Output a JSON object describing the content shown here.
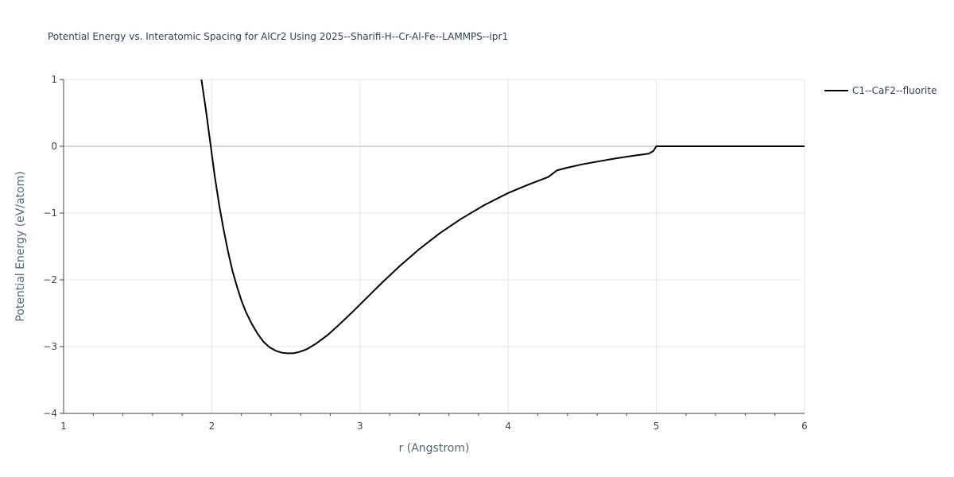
{
  "chart_data": {
    "type": "line",
    "title": "Potential Energy vs. Interatomic Spacing for AlCr2 Using 2025--Sharifi-H--Cr-Al-Fe--LAMMPS--ipr1",
    "xlabel": "r (Angstrom)",
    "ylabel": "Potential Energy (eV/atom)",
    "xlim": [
      1,
      6
    ],
    "ylim": [
      -4,
      1
    ],
    "xticks": [
      1,
      2,
      3,
      4,
      5,
      6
    ],
    "xtick_labels": [
      "1",
      "2",
      "3",
      "4",
      "5",
      "6"
    ],
    "yticks": [
      -4,
      -3,
      -2,
      -1,
      0,
      1
    ],
    "ytick_labels": [
      "−4",
      "−3",
      "−2",
      "−1",
      "0",
      "1"
    ],
    "grid": true,
    "legend_position": "top-right",
    "series": [
      {
        "name": "C1--CaF2--fluorite",
        "color": "#000000",
        "x": [
          1.93,
          1.96,
          1.99,
          2.02,
          2.05,
          2.08,
          2.11,
          2.14,
          2.17,
          2.2,
          2.23,
          2.27,
          2.31,
          2.35,
          2.39,
          2.43,
          2.47,
          2.51,
          2.55,
          2.59,
          2.64,
          2.7,
          2.78,
          2.86,
          2.95,
          3.05,
          3.15,
          3.27,
          3.4,
          3.54,
          3.68,
          3.84,
          4.0,
          4.13,
          4.27,
          4.3,
          4.33,
          4.4,
          4.5,
          4.6,
          4.73,
          4.85,
          4.95,
          4.98,
          5.0,
          5.2,
          5.5,
          5.8,
          6.0
        ],
        "y": [
          1.0,
          0.55,
          0.05,
          -0.45,
          -0.88,
          -1.25,
          -1.58,
          -1.87,
          -2.1,
          -2.31,
          -2.48,
          -2.66,
          -2.81,
          -2.93,
          -3.01,
          -3.06,
          -3.09,
          -3.1,
          -3.1,
          -3.08,
          -3.04,
          -2.96,
          -2.83,
          -2.67,
          -2.48,
          -2.26,
          -2.04,
          -1.79,
          -1.54,
          -1.3,
          -1.09,
          -0.88,
          -0.7,
          -0.58,
          -0.46,
          -0.41,
          -0.36,
          -0.32,
          -0.27,
          -0.23,
          -0.18,
          -0.14,
          -0.11,
          -0.07,
          0.0,
          0.0,
          0.0,
          0.0,
          0.0
        ]
      }
    ]
  }
}
